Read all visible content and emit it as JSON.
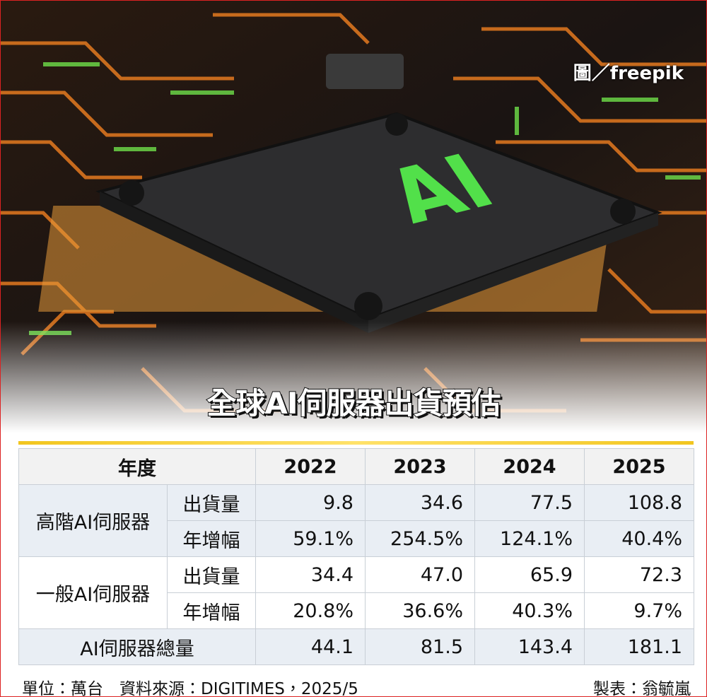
{
  "credit": "圖／freepik",
  "chip_label": "AI",
  "title": "全球AI伺服器出貨預估",
  "table": {
    "header": [
      "年度",
      "2022",
      "2023",
      "2024",
      "2025"
    ],
    "groups": [
      {
        "label": "高階AI伺服器",
        "rows": [
          {
            "metric": "出貨量",
            "values": [
              "9.8",
              "34.6",
              "77.5",
              "108.8"
            ]
          },
          {
            "metric": "年增幅",
            "values": [
              "59.1%",
              "254.5%",
              "124.1%",
              "40.4%"
            ]
          }
        ]
      },
      {
        "label": "一般AI伺服器",
        "rows": [
          {
            "metric": "出貨量",
            "values": [
              "34.4",
              "47.0",
              "65.9",
              "72.3"
            ]
          },
          {
            "metric": "年增幅",
            "values": [
              "20.8%",
              "36.6%",
              "40.3%",
              "9.7%"
            ]
          }
        ]
      }
    ],
    "total": {
      "label": "AI伺服器總量",
      "values": [
        "44.1",
        "81.5",
        "143.4",
        "181.1"
      ]
    }
  },
  "footer": {
    "source": "單位：萬台　資料來源：DIGITIMES，2025/5",
    "author": "製表：翁毓嵐"
  }
}
